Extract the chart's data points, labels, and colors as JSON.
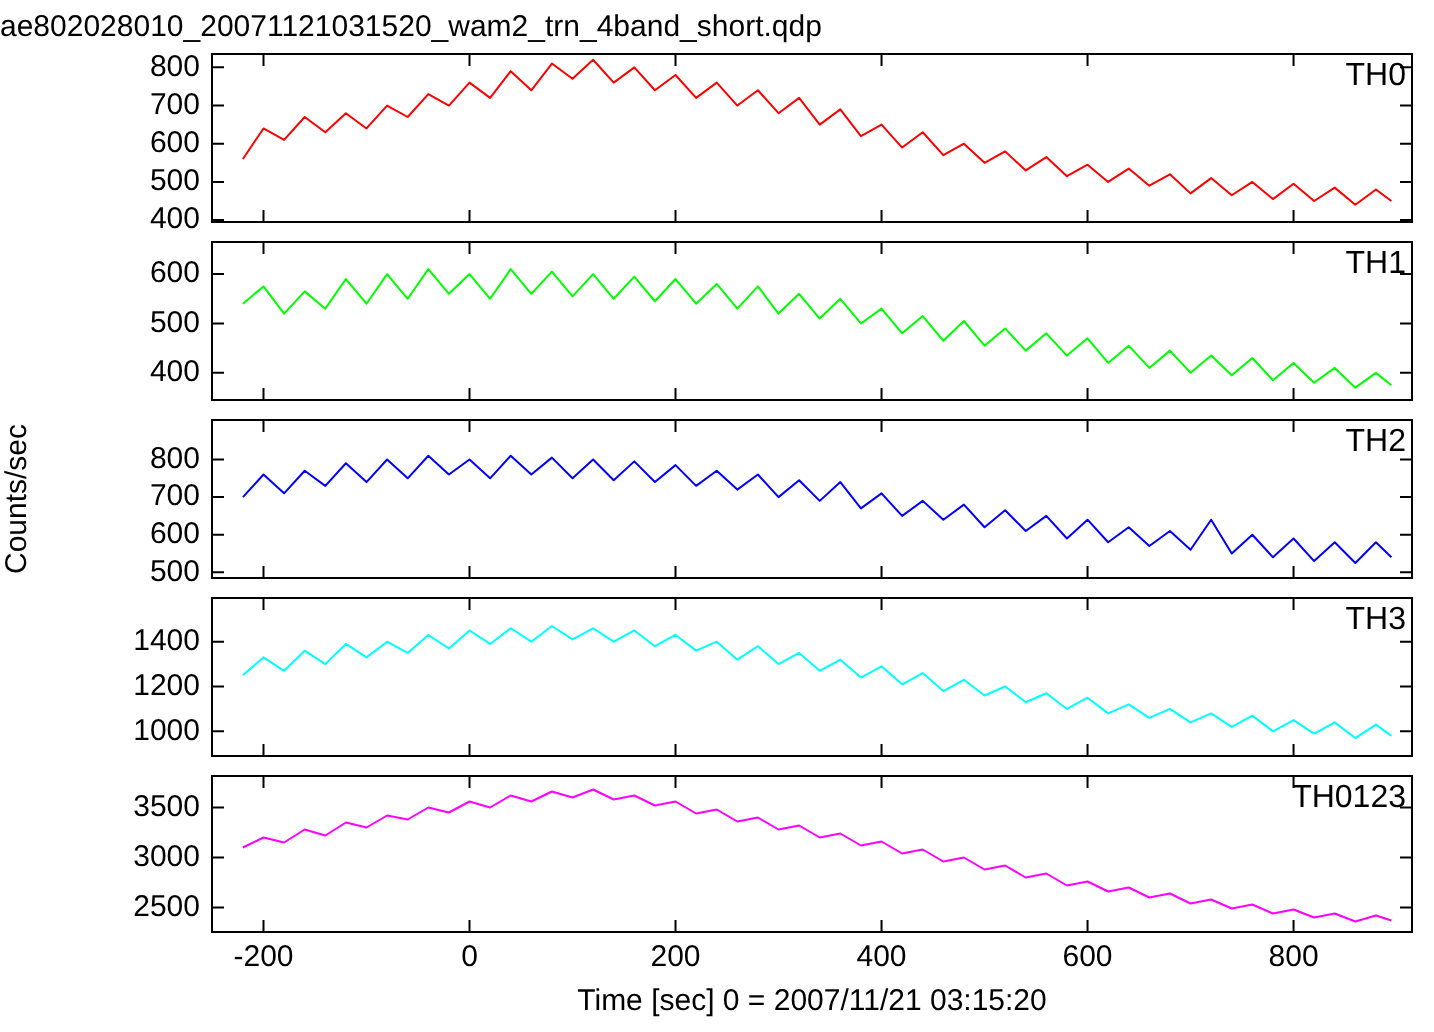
{
  "chart_data": [
    {
      "type": "line",
      "title": "ae802028010_20071121031520_wam2_trn_4band_short.qdp",
      "tick_labels": "y",
      "xlim": [
        -250,
        915
      ],
      "xticks": [
        -200,
        0,
        200,
        400,
        600,
        800
      ],
      "ylim": [
        395,
        835
      ],
      "yticks": [
        400,
        500,
        600,
        700,
        800
      ],
      "x": [
        -220,
        -200,
        -180,
        -160,
        -140,
        -120,
        -100,
        -80,
        -60,
        -40,
        -20,
        0,
        20,
        40,
        60,
        80,
        100,
        120,
        140,
        160,
        180,
        200,
        220,
        240,
        260,
        280,
        300,
        320,
        340,
        360,
        380,
        400,
        420,
        440,
        460,
        480,
        500,
        520,
        540,
        560,
        580,
        600,
        620,
        640,
        660,
        680,
        700,
        720,
        740,
        760,
        780,
        800,
        820,
        840,
        860,
        880,
        895
      ],
      "series": [
        {
          "name": "TH0",
          "color": "#ff0000",
          "values": [
            560,
            640,
            610,
            670,
            630,
            680,
            640,
            700,
            670,
            730,
            700,
            760,
            720,
            790,
            740,
            810,
            770,
            820,
            760,
            800,
            740,
            780,
            720,
            760,
            700,
            740,
            680,
            720,
            650,
            690,
            620,
            650,
            590,
            630,
            570,
            600,
            550,
            580,
            530,
            565,
            515,
            545,
            500,
            535,
            490,
            520,
            470,
            510,
            465,
            500,
            455,
            495,
            450,
            485,
            440,
            480,
            450
          ]
        }
      ]
    },
    {
      "type": "line",
      "tick_labels": "y",
      "xlim": [
        -250,
        915
      ],
      "xticks": [
        -200,
        0,
        200,
        400,
        600,
        800
      ],
      "ylim": [
        345,
        665
      ],
      "yticks": [
        400,
        500,
        600
      ],
      "x": [
        -220,
        -200,
        -180,
        -160,
        -140,
        -120,
        -100,
        -80,
        -60,
        -40,
        -20,
        0,
        20,
        40,
        60,
        80,
        100,
        120,
        140,
        160,
        180,
        200,
        220,
        240,
        260,
        280,
        300,
        320,
        340,
        360,
        380,
        400,
        420,
        440,
        460,
        480,
        500,
        520,
        540,
        560,
        580,
        600,
        620,
        640,
        660,
        680,
        700,
        720,
        740,
        760,
        780,
        800,
        820,
        840,
        860,
        880,
        895
      ],
      "series": [
        {
          "name": "TH1",
          "color": "#00ff00",
          "values": [
            540,
            575,
            520,
            565,
            530,
            590,
            540,
            600,
            550,
            610,
            560,
            600,
            550,
            610,
            560,
            605,
            555,
            600,
            550,
            595,
            545,
            590,
            540,
            580,
            530,
            575,
            520,
            560,
            510,
            550,
            500,
            530,
            480,
            515,
            465,
            505,
            455,
            490,
            445,
            480,
            435,
            470,
            420,
            455,
            410,
            445,
            400,
            435,
            395,
            430,
            385,
            420,
            380,
            410,
            370,
            400,
            375
          ]
        }
      ]
    },
    {
      "type": "line",
      "tick_labels": "y",
      "ylabel": "Counts/sec",
      "xlim": [
        -250,
        915
      ],
      "xticks": [
        -200,
        0,
        200,
        400,
        600,
        800
      ],
      "ylim": [
        485,
        905
      ],
      "yticks": [
        500,
        600,
        700,
        800
      ],
      "x": [
        -220,
        -200,
        -180,
        -160,
        -140,
        -120,
        -100,
        -80,
        -60,
        -40,
        -20,
        0,
        20,
        40,
        60,
        80,
        100,
        120,
        140,
        160,
        180,
        200,
        220,
        240,
        260,
        280,
        300,
        320,
        340,
        360,
        380,
        400,
        420,
        440,
        460,
        480,
        500,
        520,
        540,
        560,
        580,
        600,
        620,
        640,
        660,
        680,
        700,
        720,
        740,
        760,
        780,
        800,
        820,
        840,
        860,
        880,
        895
      ],
      "series": [
        {
          "name": "TH2",
          "color": "#0000ff",
          "values": [
            700,
            760,
            710,
            770,
            730,
            790,
            740,
            800,
            750,
            810,
            760,
            800,
            750,
            810,
            760,
            805,
            750,
            800,
            745,
            795,
            740,
            785,
            730,
            770,
            720,
            760,
            700,
            745,
            690,
            740,
            670,
            710,
            650,
            690,
            640,
            680,
            620,
            665,
            610,
            650,
            590,
            640,
            580,
            620,
            570,
            610,
            560,
            640,
            550,
            600,
            540,
            590,
            530,
            580,
            525,
            580,
            540
          ]
        }
      ]
    },
    {
      "type": "line",
      "tick_labels": "y",
      "xlim": [
        -250,
        915
      ],
      "xticks": [
        -200,
        0,
        200,
        400,
        600,
        800
      ],
      "ylim": [
        890,
        1595
      ],
      "yticks": [
        1000,
        1200,
        1400
      ],
      "x": [
        -220,
        -200,
        -180,
        -160,
        -140,
        -120,
        -100,
        -80,
        -60,
        -40,
        -20,
        0,
        20,
        40,
        60,
        80,
        100,
        120,
        140,
        160,
        180,
        200,
        220,
        240,
        260,
        280,
        300,
        320,
        340,
        360,
        380,
        400,
        420,
        440,
        460,
        480,
        500,
        520,
        540,
        560,
        580,
        600,
        620,
        640,
        660,
        680,
        700,
        720,
        740,
        760,
        780,
        800,
        820,
        840,
        860,
        880,
        895
      ],
      "series": [
        {
          "name": "TH3",
          "color": "#00ffff",
          "values": [
            1250,
            1330,
            1270,
            1360,
            1300,
            1390,
            1330,
            1400,
            1350,
            1430,
            1370,
            1450,
            1390,
            1460,
            1400,
            1470,
            1410,
            1460,
            1400,
            1450,
            1380,
            1430,
            1360,
            1400,
            1320,
            1380,
            1300,
            1350,
            1270,
            1320,
            1240,
            1290,
            1210,
            1260,
            1180,
            1230,
            1160,
            1200,
            1130,
            1170,
            1100,
            1150,
            1080,
            1120,
            1060,
            1100,
            1040,
            1080,
            1020,
            1070,
            1000,
            1050,
            990,
            1040,
            970,
            1030,
            980
          ]
        }
      ]
    },
    {
      "type": "line",
      "xlabel": "Time [sec] 0 = 2007/11/21 03:15:20",
      "xlim": [
        -250,
        915
      ],
      "xticks": [
        -200,
        0,
        200,
        400,
        600,
        800
      ],
      "ylim": [
        2255,
        3815
      ],
      "yticks": [
        2500,
        3000,
        3500
      ],
      "x": [
        -220,
        -200,
        -180,
        -160,
        -140,
        -120,
        -100,
        -80,
        -60,
        -40,
        -20,
        0,
        20,
        40,
        60,
        80,
        100,
        120,
        140,
        160,
        180,
        200,
        220,
        240,
        260,
        280,
        300,
        320,
        340,
        360,
        380,
        400,
        420,
        440,
        460,
        480,
        500,
        520,
        540,
        560,
        580,
        600,
        620,
        640,
        660,
        680,
        700,
        720,
        740,
        760,
        780,
        800,
        820,
        840,
        860,
        880,
        895
      ],
      "series": [
        {
          "name": "TH0123",
          "color": "#ff00ff",
          "values": [
            3100,
            3200,
            3150,
            3280,
            3220,
            3350,
            3300,
            3420,
            3380,
            3500,
            3450,
            3560,
            3500,
            3620,
            3560,
            3660,
            3600,
            3680,
            3580,
            3620,
            3520,
            3560,
            3440,
            3480,
            3360,
            3400,
            3280,
            3320,
            3200,
            3240,
            3120,
            3160,
            3040,
            3080,
            2960,
            3000,
            2880,
            2920,
            2800,
            2840,
            2720,
            2760,
            2660,
            2700,
            2600,
            2640,
            2540,
            2580,
            2490,
            2530,
            2440,
            2480,
            2400,
            2440,
            2360,
            2420,
            2370
          ]
        }
      ]
    }
  ]
}
